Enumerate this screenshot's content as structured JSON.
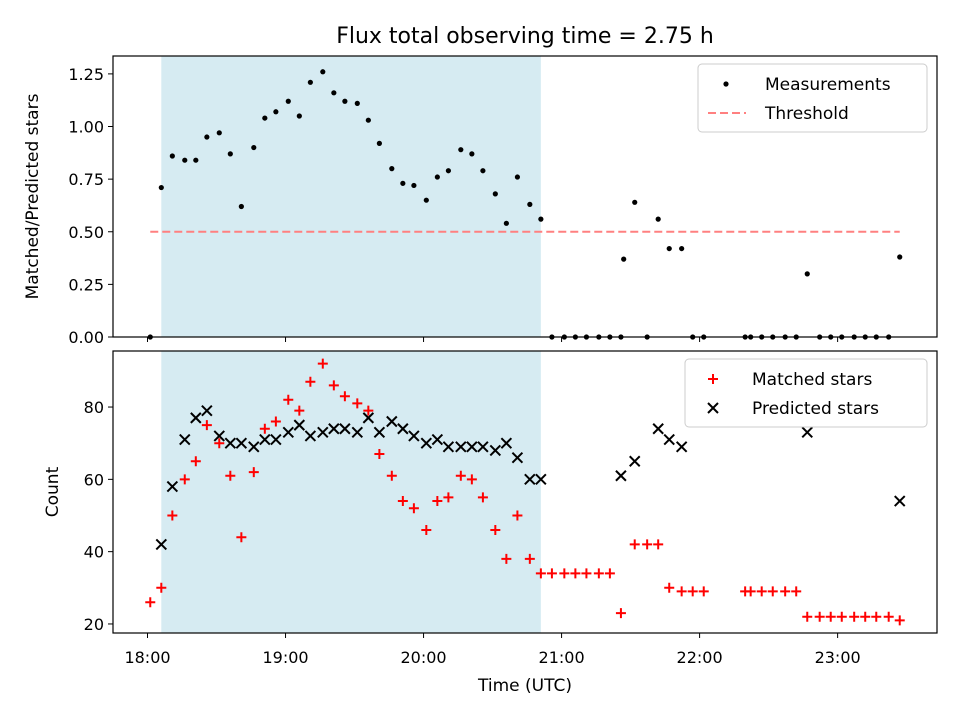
{
  "chart_data": {
    "title": "Flux total observing time = 2.75 h",
    "xlabel": "Time (UTC)",
    "x_unit": "hours UTC",
    "xlim": [
      17.75,
      23.72
    ],
    "x_ticks": [
      {
        "value": 18,
        "label": "18:00"
      },
      {
        "value": 19,
        "label": "19:00"
      },
      {
        "value": 20,
        "label": "20:00"
      },
      {
        "value": 21,
        "label": "21:00"
      },
      {
        "value": 22,
        "label": "22:00"
      },
      {
        "value": 23,
        "label": "23:00"
      }
    ],
    "observing_window": {
      "start": 18.1,
      "end": 20.85,
      "color": "#add8e6"
    },
    "panels": [
      {
        "type": "scatter",
        "ylabel": "Matched/Predicted stars",
        "ylim": [
          0,
          1.335
        ],
        "y_ticks": [
          {
            "value": 0,
            "label": "0.00"
          },
          {
            "value": 0.25,
            "label": "0.25"
          },
          {
            "value": 0.5,
            "label": "0.50"
          },
          {
            "value": 0.75,
            "label": "0.75"
          },
          {
            "value": 1.0,
            "label": "1.00"
          },
          {
            "value": 1.25,
            "label": "1.25"
          }
        ],
        "legend": {
          "position": "top-right",
          "entries": [
            "Measurements",
            "Threshold"
          ]
        },
        "series": [
          {
            "name": "Measurements",
            "marker": "dot",
            "color": "#000000",
            "points": [
              [
                18.02,
                0.0
              ],
              [
                18.1,
                0.71
              ],
              [
                18.18,
                0.86
              ],
              [
                18.27,
                0.84
              ],
              [
                18.35,
                0.84
              ],
              [
                18.43,
                0.95
              ],
              [
                18.52,
                0.97
              ],
              [
                18.6,
                0.87
              ],
              [
                18.68,
                0.62
              ],
              [
                18.77,
                0.9
              ],
              [
                18.85,
                1.04
              ],
              [
                18.93,
                1.07
              ],
              [
                19.02,
                1.12
              ],
              [
                19.1,
                1.05
              ],
              [
                19.18,
                1.21
              ],
              [
                19.27,
                1.26
              ],
              [
                19.35,
                1.16
              ],
              [
                19.43,
                1.12
              ],
              [
                19.52,
                1.11
              ],
              [
                19.6,
                1.03
              ],
              [
                19.68,
                0.92
              ],
              [
                19.77,
                0.8
              ],
              [
                19.85,
                0.73
              ],
              [
                19.93,
                0.72
              ],
              [
                20.02,
                0.65
              ],
              [
                20.1,
                0.76
              ],
              [
                20.18,
                0.79
              ],
              [
                20.27,
                0.89
              ],
              [
                20.35,
                0.87
              ],
              [
                20.43,
                0.79
              ],
              [
                20.52,
                0.68
              ],
              [
                20.6,
                0.54
              ],
              [
                20.68,
                0.76
              ],
              [
                20.77,
                0.63
              ],
              [
                20.85,
                0.56
              ],
              [
                20.93,
                0.0
              ],
              [
                21.02,
                0.0
              ],
              [
                21.1,
                0.0
              ],
              [
                21.18,
                0.0
              ],
              [
                21.27,
                0.0
              ],
              [
                21.35,
                0.0
              ],
              [
                21.43,
                0.0
              ],
              [
                21.45,
                0.37
              ],
              [
                21.53,
                0.64
              ],
              [
                21.62,
                0.0
              ],
              [
                21.7,
                0.56
              ],
              [
                21.78,
                0.42
              ],
              [
                21.87,
                0.42
              ],
              [
                21.95,
                0.0
              ],
              [
                22.03,
                0.0
              ],
              [
                22.33,
                0.0
              ],
              [
                22.37,
                0.0
              ],
              [
                22.45,
                0.0
              ],
              [
                22.53,
                0.0
              ],
              [
                22.62,
                0.0
              ],
              [
                22.7,
                0.0
              ],
              [
                22.78,
                0.3
              ],
              [
                22.87,
                0.0
              ],
              [
                22.95,
                0.0
              ],
              [
                23.03,
                0.0
              ],
              [
                23.12,
                0.0
              ],
              [
                23.2,
                0.0
              ],
              [
                23.28,
                0.0
              ],
              [
                23.37,
                0.0
              ],
              [
                23.45,
                0.38
              ]
            ]
          },
          {
            "name": "Threshold",
            "marker": "dashed-line",
            "color": "#ff8080",
            "points": [
              [
                18.02,
                0.5
              ],
              [
                23.45,
                0.5
              ]
            ]
          }
        ]
      },
      {
        "type": "scatter",
        "ylabel": "Count",
        "ylim": [
          17.5,
          95.5
        ],
        "y_ticks": [
          {
            "value": 20,
            "label": "20"
          },
          {
            "value": 40,
            "label": "40"
          },
          {
            "value": 60,
            "label": "60"
          },
          {
            "value": 80,
            "label": "80"
          }
        ],
        "legend": {
          "position": "top-right",
          "entries": [
            "Matched stars",
            "Predicted stars"
          ]
        },
        "series": [
          {
            "name": "Matched stars",
            "marker": "plus",
            "color": "#ff0000",
            "points": [
              [
                18.02,
                26
              ],
              [
                18.1,
                30
              ],
              [
                18.18,
                50
              ],
              [
                18.27,
                60
              ],
              [
                18.35,
                65
              ],
              [
                18.43,
                75
              ],
              [
                18.52,
                70
              ],
              [
                18.6,
                61
              ],
              [
                18.68,
                44
              ],
              [
                18.77,
                62
              ],
              [
                18.85,
                74
              ],
              [
                18.93,
                76
              ],
              [
                19.02,
                82
              ],
              [
                19.1,
                79
              ],
              [
                19.18,
                87
              ],
              [
                19.27,
                92
              ],
              [
                19.35,
                86
              ],
              [
                19.43,
                83
              ],
              [
                19.52,
                81
              ],
              [
                19.6,
                79
              ],
              [
                19.68,
                67
              ],
              [
                19.77,
                61
              ],
              [
                19.85,
                54
              ],
              [
                19.93,
                52
              ],
              [
                20.02,
                46
              ],
              [
                20.1,
                54
              ],
              [
                20.18,
                55
              ],
              [
                20.27,
                61
              ],
              [
                20.35,
                60
              ],
              [
                20.43,
                55
              ],
              [
                20.52,
                46
              ],
              [
                20.6,
                38
              ],
              [
                20.68,
                50
              ],
              [
                20.77,
                38
              ],
              [
                20.85,
                34
              ],
              [
                20.93,
                34
              ],
              [
                21.02,
                34
              ],
              [
                21.1,
                34
              ],
              [
                21.18,
                34
              ],
              [
                21.27,
                34
              ],
              [
                21.35,
                34
              ],
              [
                21.43,
                23
              ],
              [
                21.53,
                42
              ],
              [
                21.62,
                42
              ],
              [
                21.7,
                42
              ],
              [
                21.78,
                30
              ],
              [
                21.87,
                29
              ],
              [
                21.95,
                29
              ],
              [
                22.03,
                29
              ],
              [
                22.33,
                29
              ],
              [
                22.37,
                29
              ],
              [
                22.45,
                29
              ],
              [
                22.53,
                29
              ],
              [
                22.62,
                29
              ],
              [
                22.7,
                29
              ],
              [
                22.78,
                22
              ],
              [
                22.87,
                22
              ],
              [
                22.95,
                22
              ],
              [
                23.03,
                22
              ],
              [
                23.12,
                22
              ],
              [
                23.2,
                22
              ],
              [
                23.28,
                22
              ],
              [
                23.37,
                22
              ],
              [
                23.45,
                21
              ]
            ]
          },
          {
            "name": "Predicted stars",
            "marker": "x",
            "color": "#000000",
            "points": [
              [
                18.1,
                42
              ],
              [
                18.18,
                58
              ],
              [
                18.27,
                71
              ],
              [
                18.35,
                77
              ],
              [
                18.43,
                79
              ],
              [
                18.52,
                72
              ],
              [
                18.6,
                70
              ],
              [
                18.68,
                70
              ],
              [
                18.77,
                69
              ],
              [
                18.85,
                71
              ],
              [
                18.93,
                71
              ],
              [
                19.02,
                73
              ],
              [
                19.1,
                75
              ],
              [
                19.18,
                72
              ],
              [
                19.27,
                73
              ],
              [
                19.35,
                74
              ],
              [
                19.43,
                74
              ],
              [
                19.52,
                73
              ],
              [
                19.6,
                77
              ],
              [
                19.68,
                73
              ],
              [
                19.77,
                76
              ],
              [
                19.85,
                74
              ],
              [
                19.93,
                72
              ],
              [
                20.02,
                70
              ],
              [
                20.1,
                71
              ],
              [
                20.18,
                69
              ],
              [
                20.27,
                69
              ],
              [
                20.35,
                69
              ],
              [
                20.43,
                69
              ],
              [
                20.52,
                68
              ],
              [
                20.6,
                70
              ],
              [
                20.68,
                66
              ],
              [
                20.77,
                60
              ],
              [
                20.85,
                60
              ],
              [
                21.43,
                61
              ],
              [
                21.53,
                65
              ],
              [
                21.7,
                74
              ],
              [
                21.78,
                71
              ],
              [
                21.87,
                69
              ],
              [
                22.78,
                73
              ],
              [
                23.45,
                54
              ]
            ]
          }
        ]
      }
    ]
  }
}
